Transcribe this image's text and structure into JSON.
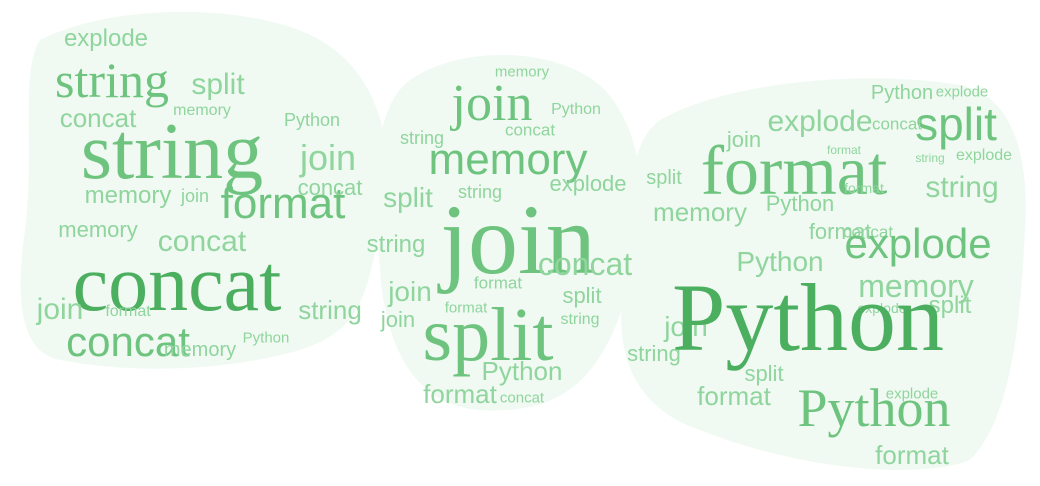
{
  "colors": {
    "background": "#ffffff",
    "shape_fill": "#f0faf2",
    "word_light": "#8fd59d",
    "word_mid": "#6ec47f",
    "word_dark": "#4caf60"
  },
  "words": [
    "explode",
    "string",
    "split",
    "memory",
    "concat",
    "Python",
    "string",
    "join",
    "memory",
    "join",
    "format",
    "concat",
    "memory",
    "concat",
    "concat",
    "join",
    "string",
    "format",
    "concat",
    "memory",
    "Python",
    "memory",
    "join",
    "Python",
    "string",
    "concat",
    "memory",
    "split",
    "string",
    "explode",
    "join",
    "string",
    "concat",
    "join",
    "format",
    "split",
    "join",
    "split",
    "string",
    "Python",
    "format",
    "concat",
    "join",
    "explode",
    "Python",
    "explode",
    "split",
    "concat",
    "split",
    "format",
    "explode",
    "format",
    "memory",
    "Python",
    "format",
    "string",
    "concat",
    "Python",
    "explode",
    "memory",
    "explode",
    "split",
    "join",
    "string",
    "Python",
    "split",
    "format",
    "Python",
    "explode",
    "format",
    "format",
    "string"
  ]
}
